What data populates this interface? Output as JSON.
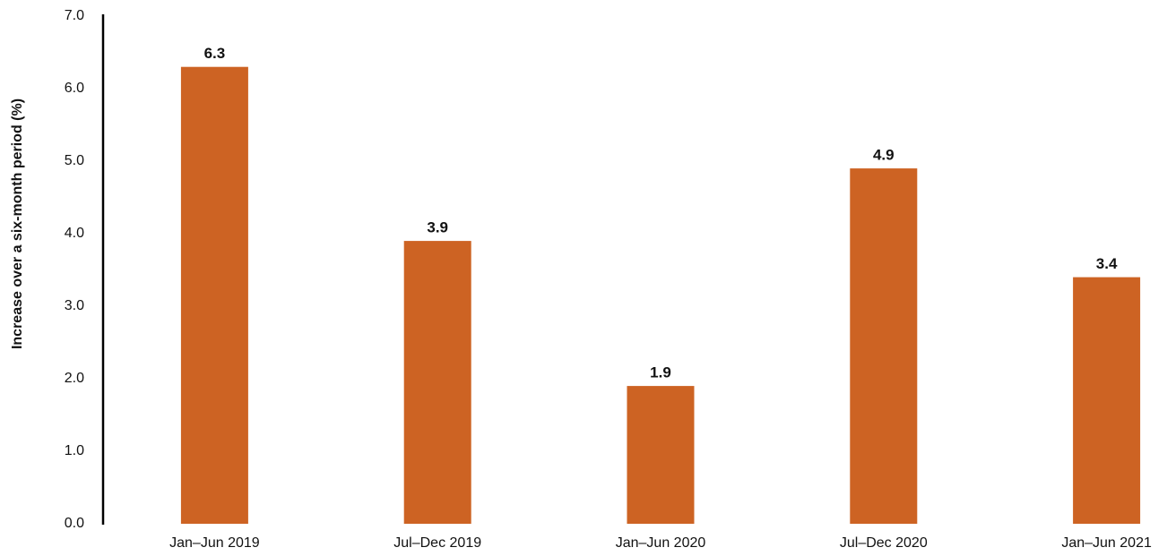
{
  "chart_data": {
    "type": "bar",
    "y_axis_label": "Increase over a six-month period (%)",
    "categories": [
      "Jan–Jun 2019",
      "Jul–Dec 2019",
      "Jan–Jun 2020",
      "Jul–Dec 2020",
      "Jan–Jun 2021"
    ],
    "values": [
      6.3,
      3.9,
      1.9,
      4.9,
      3.4
    ],
    "color": "#cd6323",
    "ylim": [
      0,
      7
    ],
    "yticks": [
      {
        "value": 0,
        "label": "0.0"
      },
      {
        "value": 1,
        "label": "1.0"
      },
      {
        "value": 2,
        "label": "2.0"
      },
      {
        "value": 3,
        "label": "3.0"
      },
      {
        "value": 4,
        "label": "4.0"
      },
      {
        "value": 5,
        "label": "5.0"
      },
      {
        "value": 6,
        "label": "6.0"
      },
      {
        "value": 7,
        "label": "7.0"
      }
    ],
    "grid": false
  }
}
